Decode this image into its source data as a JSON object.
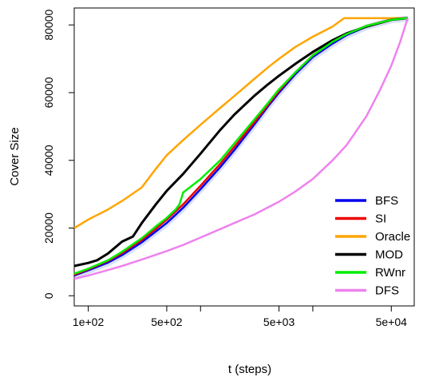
{
  "chart_data": {
    "type": "line",
    "xlabel": "t (steps)",
    "ylabel": "Cover Size",
    "x_scale": "log",
    "xlim": [
      75,
      80000
    ],
    "ylim": [
      -3000,
      85000
    ],
    "x_ticks": [
      {
        "value": 100,
        "label": "1e+02"
      },
      {
        "value": 500,
        "label": "5e+02"
      },
      {
        "value": 5000,
        "label": "5e+03"
      },
      {
        "value": 50000,
        "label": "5e+04"
      }
    ],
    "x_minor_ticks": [
      1000,
      10000
    ],
    "y_ticks": [
      {
        "value": 0,
        "label": "0"
      },
      {
        "value": 20000,
        "label": "20000"
      },
      {
        "value": 40000,
        "label": "40000"
      },
      {
        "value": 60000,
        "label": "60000"
      },
      {
        "value": 80000,
        "label": "80000"
      }
    ],
    "grid": false,
    "legend_position": "bottom-right",
    "series": [
      {
        "name": "BFS",
        "color": "#0000ee",
        "width": 2.5,
        "band": true,
        "points": [
          [
            75,
            6000
          ],
          [
            100,
            7500
          ],
          [
            150,
            9800
          ],
          [
            200,
            12000
          ],
          [
            300,
            15800
          ],
          [
            400,
            19000
          ],
          [
            500,
            21500
          ],
          [
            700,
            26000
          ],
          [
            1000,
            31500
          ],
          [
            1500,
            38000
          ],
          [
            2000,
            43000
          ],
          [
            3000,
            50500
          ],
          [
            4000,
            56000
          ],
          [
            5000,
            60000
          ],
          [
            7000,
            65500
          ],
          [
            10000,
            70500
          ],
          [
            15000,
            74500
          ],
          [
            20000,
            77000
          ],
          [
            30000,
            79500
          ],
          [
            50000,
            81500
          ],
          [
            70000,
            82000
          ]
        ]
      },
      {
        "name": "SI",
        "color": "#ee0000",
        "width": 2.5,
        "points": [
          [
            75,
            6200
          ],
          [
            100,
            7800
          ],
          [
            150,
            10300
          ],
          [
            200,
            12600
          ],
          [
            300,
            16500
          ],
          [
            400,
            19800
          ],
          [
            500,
            22500
          ],
          [
            700,
            27000
          ],
          [
            1000,
            32500
          ],
          [
            1500,
            39000
          ],
          [
            2000,
            44000
          ],
          [
            3000,
            51200
          ],
          [
            4000,
            56500
          ],
          [
            5000,
            60500
          ],
          [
            7000,
            66000
          ],
          [
            10000,
            71000
          ],
          [
            15000,
            75000
          ],
          [
            20000,
            77300
          ],
          [
            30000,
            79700
          ],
          [
            50000,
            81600
          ],
          [
            70000,
            82000
          ]
        ]
      },
      {
        "name": "Oracle",
        "color": "#ffa500",
        "width": 2.5,
        "points": [
          [
            75,
            20000
          ],
          [
            100,
            22500
          ],
          [
            150,
            25500
          ],
          [
            200,
            28000
          ],
          [
            300,
            32000
          ],
          [
            400,
            37500
          ],
          [
            500,
            41500
          ],
          [
            700,
            46000
          ],
          [
            1000,
            50500
          ],
          [
            1500,
            55500
          ],
          [
            2000,
            59000
          ],
          [
            3000,
            64000
          ],
          [
            4000,
            67500
          ],
          [
            5000,
            70000
          ],
          [
            7000,
            73500
          ],
          [
            10000,
            76500
          ],
          [
            15000,
            79500
          ],
          [
            19000,
            82000
          ],
          [
            70000,
            82000
          ]
        ]
      },
      {
        "name": "MOD",
        "color": "#000000",
        "width": 3,
        "points": [
          [
            75,
            8800
          ],
          [
            100,
            9700
          ],
          [
            120,
            10500
          ],
          [
            150,
            12500
          ],
          [
            200,
            16000
          ],
          [
            250,
            17500
          ],
          [
            300,
            21500
          ],
          [
            400,
            27000
          ],
          [
            500,
            31000
          ],
          [
            700,
            36000
          ],
          [
            1000,
            42000
          ],
          [
            1500,
            49000
          ],
          [
            2000,
            53500
          ],
          [
            3000,
            59000
          ],
          [
            4000,
            62500
          ],
          [
            5000,
            65000
          ],
          [
            7000,
            68500
          ],
          [
            10000,
            72000
          ],
          [
            15000,
            75500
          ],
          [
            20000,
            77500
          ],
          [
            30000,
            79500
          ],
          [
            50000,
            81500
          ],
          [
            70000,
            82000
          ]
        ]
      },
      {
        "name": "RWnr",
        "color": "#00ee00",
        "width": 2.5,
        "points": [
          [
            75,
            6500
          ],
          [
            100,
            8000
          ],
          [
            150,
            10500
          ],
          [
            200,
            13000
          ],
          [
            300,
            17000
          ],
          [
            400,
            20500
          ],
          [
            500,
            23000
          ],
          [
            600,
            25500
          ],
          [
            650,
            27000
          ],
          [
            700,
            30500
          ],
          [
            1000,
            34500
          ],
          [
            1500,
            40000
          ],
          [
            2000,
            45000
          ],
          [
            3000,
            52000
          ],
          [
            4000,
            57000
          ],
          [
            5000,
            61000
          ],
          [
            7000,
            66000
          ],
          [
            10000,
            71000
          ],
          [
            15000,
            75000
          ],
          [
            20000,
            77300
          ],
          [
            30000,
            79700
          ],
          [
            50000,
            81500
          ],
          [
            70000,
            82000
          ]
        ]
      },
      {
        "name": "DFS",
        "color": "#ee82ee",
        "width": 2.5,
        "points": [
          [
            75,
            5000
          ],
          [
            100,
            6000
          ],
          [
            150,
            7600
          ],
          [
            200,
            8800
          ],
          [
            300,
            10700
          ],
          [
            500,
            13200
          ],
          [
            700,
            15000
          ],
          [
            1000,
            17200
          ],
          [
            1500,
            19700
          ],
          [
            2000,
            21500
          ],
          [
            3000,
            24000
          ],
          [
            5000,
            27800
          ],
          [
            7000,
            30800
          ],
          [
            10000,
            34500
          ],
          [
            15000,
            40000
          ],
          [
            20000,
            44500
          ],
          [
            30000,
            53000
          ],
          [
            40000,
            61000
          ],
          [
            50000,
            68000
          ],
          [
            60000,
            75000
          ],
          [
            70000,
            82000
          ]
        ]
      }
    ]
  }
}
